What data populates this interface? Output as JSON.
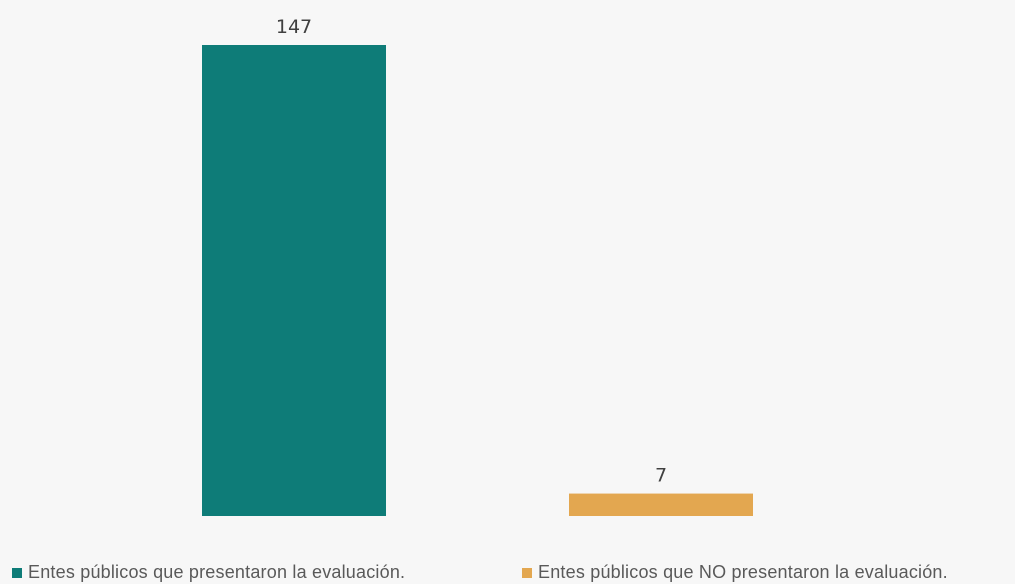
{
  "chart_data": {
    "type": "bar",
    "categories": [
      "Entes públicos que presentaron la evaluación.",
      "Entes públicos que NO presentaron la evaluación."
    ],
    "values": [
      147,
      7
    ],
    "data_labels": [
      "147",
      "7"
    ],
    "colors": [
      "#0e7c78",
      "#e3a750"
    ],
    "ylim": [
      0,
      147
    ],
    "grid": false,
    "legend_position": "bottom",
    "legend": [
      {
        "label": "Entes públicos que presentaron la evaluación.",
        "color": "#0e7c78"
      },
      {
        "label": "Entes públicos que NO presentaron la evaluación.",
        "color": "#e3a750"
      }
    ]
  }
}
